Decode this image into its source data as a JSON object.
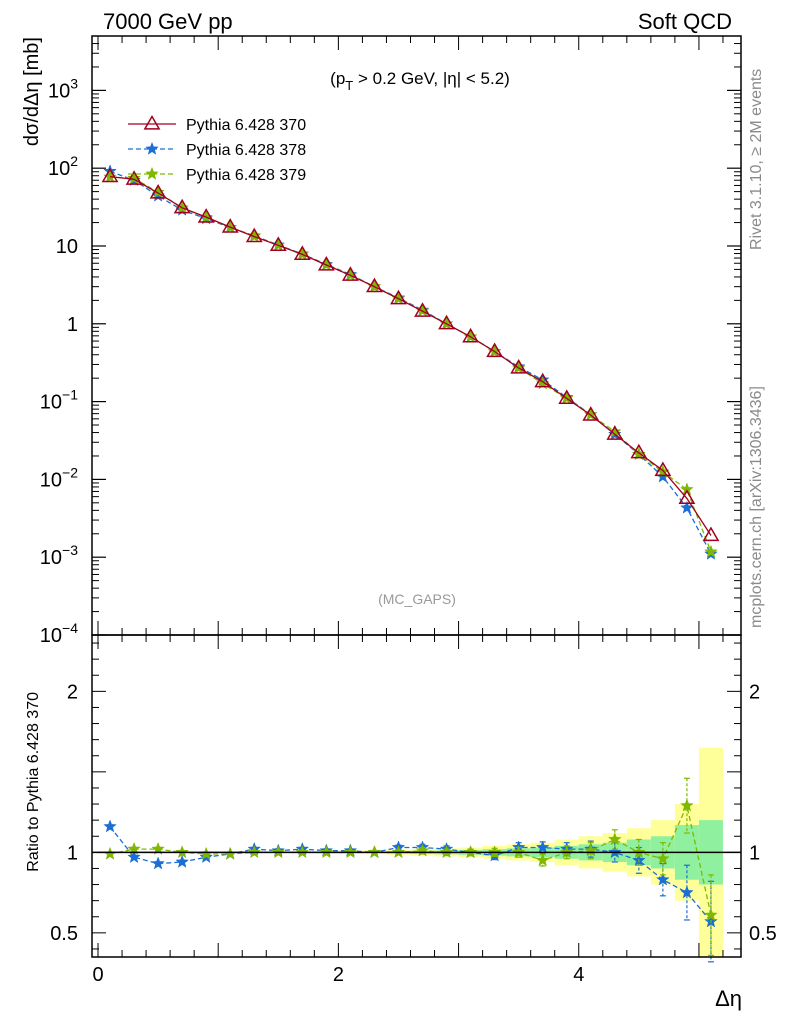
{
  "header": {
    "left": "7000 GeV pp",
    "right": "Soft QCD"
  },
  "cut_label": "(p_T > 0.2 GeV, |η| < 5.2)",
  "analysis_label": "(MC_GAPS)",
  "side_labels": {
    "rivet": "Rivet 3.1.10, ≥ 2M events",
    "mcplots": "mcplots.cern.ch [arXiv:1306.3436]"
  },
  "chart_data": [
    {
      "type": "line",
      "panel": "main",
      "ylabel": "dσ/dΔη [mb]",
      "xlabel": "",
      "yscale": "log",
      "ylim": [
        0.0001,
        5000
      ],
      "xlim": [
        -0.05,
        5.35
      ],
      "y_ticks": [
        "10^-4",
        "10^-3",
        "10^-2",
        "10^-1",
        "1",
        "10",
        "10^2",
        "10^3"
      ],
      "legend_position": "top-left",
      "x": [
        0.1,
        0.3,
        0.5,
        0.7,
        0.9,
        1.1,
        1.3,
        1.5,
        1.7,
        1.9,
        2.1,
        2.3,
        2.5,
        2.7,
        2.9,
        3.1,
        3.3,
        3.5,
        3.7,
        3.9,
        4.1,
        4.3,
        4.5,
        4.7,
        4.9,
        5.1
      ],
      "series": [
        {
          "name": "Pythia 6.428 370",
          "color": "#a0001e",
          "marker": "triangle",
          "dash": "solid",
          "values": [
            78,
            72,
            48,
            31,
            23.5,
            17.5,
            13.2,
            10.2,
            7.8,
            5.7,
            4.2,
            3.0,
            2.1,
            1.45,
            1.0,
            0.68,
            0.44,
            0.27,
            0.18,
            0.11,
            0.067,
            0.038,
            0.022,
            0.013,
            0.0057,
            0.0019
          ]
        },
        {
          "name": "Pythia 6.428 378",
          "color": "#1a6fd6",
          "marker": "star",
          "dash": "dashed",
          "values": [
            91,
            70,
            44,
            29,
            22.5,
            17.3,
            13.5,
            10.3,
            7.9,
            5.8,
            4.3,
            3.0,
            2.15,
            1.5,
            1.0,
            0.68,
            0.44,
            0.28,
            0.19,
            0.113,
            0.068,
            0.038,
            0.021,
            0.0108,
            0.0043,
            0.0011
          ]
        },
        {
          "name": "Pythia 6.428 379",
          "color": "#7fb800",
          "marker": "star",
          "dash": "dashed",
          "values": [
            77,
            74,
            49,
            31,
            23.3,
            17.4,
            13.3,
            10.2,
            7.8,
            5.7,
            4.2,
            3.0,
            2.1,
            1.47,
            1.0,
            0.68,
            0.44,
            0.27,
            0.17,
            0.11,
            0.068,
            0.041,
            0.021,
            0.0125,
            0.0074,
            0.00117
          ]
        }
      ]
    },
    {
      "type": "line",
      "panel": "ratio",
      "ylabel": "Ratio to Pythia 6.428 370",
      "xlabel": "Δη",
      "ylim": [
        0.35,
        2.35
      ],
      "y_ticks": [
        0.5,
        1,
        2
      ],
      "x_ticks": [
        0,
        2,
        4
      ],
      "x": [
        0.1,
        0.3,
        0.5,
        0.7,
        0.9,
        1.1,
        1.3,
        1.5,
        1.7,
        1.9,
        2.1,
        2.3,
        2.5,
        2.7,
        2.9,
        3.1,
        3.3,
        3.5,
        3.7,
        3.9,
        4.1,
        4.3,
        4.5,
        4.7,
        4.9,
        5.1
      ],
      "band_inner": [
        0.005,
        0.005,
        0.005,
        0.005,
        0.005,
        0.005,
        0.005,
        0.005,
        0.005,
        0.005,
        0.005,
        0.005,
        0.008,
        0.01,
        0.012,
        0.015,
        0.02,
        0.025,
        0.03,
        0.04,
        0.05,
        0.06,
        0.08,
        0.1,
        0.17,
        0.2
      ],
      "band_outer": [
        0.008,
        0.008,
        0.008,
        0.008,
        0.008,
        0.008,
        0.008,
        0.008,
        0.008,
        0.01,
        0.01,
        0.012,
        0.015,
        0.02,
        0.025,
        0.03,
        0.04,
        0.05,
        0.06,
        0.08,
        0.1,
        0.12,
        0.15,
        0.2,
        0.3,
        0.65
      ],
      "series": [
        {
          "name": "Pythia 6.428 378",
          "color": "#1a6fd6",
          "values": [
            1.16,
            0.97,
            0.93,
            0.94,
            0.97,
            0.99,
            1.02,
            1.01,
            1.02,
            1.01,
            1.01,
            1.0,
            1.03,
            1.03,
            1.02,
            1.0,
            0.98,
            1.03,
            1.03,
            1.02,
            1.02,
            1.0,
            0.95,
            0.83,
            0.75,
            0.57
          ],
          "errors": [
            0.01,
            0.01,
            0.01,
            0.01,
            0.01,
            0.01,
            0.01,
            0.01,
            0.01,
            0.01,
            0.01,
            0.01,
            0.015,
            0.02,
            0.02,
            0.02,
            0.025,
            0.03,
            0.035,
            0.04,
            0.05,
            0.06,
            0.08,
            0.1,
            0.17,
            0.25
          ]
        },
        {
          "name": "Pythia 6.428 379",
          "color": "#7fb800",
          "values": [
            0.99,
            1.02,
            1.02,
            1.0,
            0.99,
            0.99,
            1.0,
            1.0,
            1.0,
            1.0,
            1.0,
            1.0,
            1.0,
            1.01,
            1.0,
            1.0,
            1.0,
            1.0,
            0.95,
            1.0,
            1.01,
            1.08,
            1.0,
            0.96,
            1.29,
            0.61
          ],
          "errors": [
            0.01,
            0.01,
            0.01,
            0.01,
            0.01,
            0.01,
            0.01,
            0.01,
            0.01,
            0.01,
            0.01,
            0.01,
            0.015,
            0.02,
            0.02,
            0.02,
            0.025,
            0.03,
            0.035,
            0.04,
            0.05,
            0.06,
            0.08,
            0.1,
            0.17,
            0.25
          ]
        }
      ]
    }
  ]
}
